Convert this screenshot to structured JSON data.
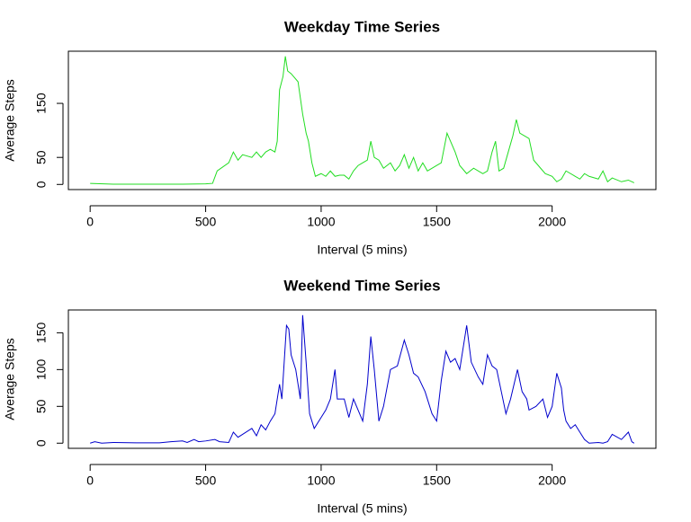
{
  "chart_data": [
    {
      "type": "line",
      "title": "Weekday Time Series",
      "xlabel": "Interval (5 mins)",
      "ylabel": "Average Steps",
      "color": "#22dd22",
      "xlim": [
        -94.2,
        2449.2
      ],
      "xticks": [
        0,
        500,
        1000,
        1500,
        2000
      ],
      "ylim": [
        -9.5,
        246.5
      ],
      "yticks": [
        0,
        50,
        150
      ],
      "x": [
        0,
        100,
        200,
        300,
        400,
        500,
        530,
        550,
        600,
        620,
        640,
        660,
        700,
        720,
        740,
        760,
        780,
        800,
        810,
        820,
        835,
        845,
        855,
        870,
        900,
        920,
        935,
        945,
        960,
        975,
        1000,
        1020,
        1040,
        1060,
        1080,
        1100,
        1120,
        1140,
        1160,
        1180,
        1200,
        1215,
        1230,
        1250,
        1270,
        1300,
        1320,
        1340,
        1360,
        1380,
        1400,
        1420,
        1440,
        1460,
        1500,
        1520,
        1545,
        1560,
        1580,
        1600,
        1630,
        1660,
        1700,
        1720,
        1740,
        1755,
        1770,
        1790,
        1810,
        1830,
        1845,
        1860,
        1900,
        1920,
        1950,
        1970,
        2000,
        2020,
        2040,
        2060,
        2100,
        2120,
        2140,
        2160,
        2200,
        2220,
        2240,
        2260,
        2300,
        2330,
        2355
      ],
      "values": [
        2,
        0.5,
        0.5,
        0.5,
        0.5,
        1,
        2,
        25,
        40,
        60,
        45,
        55,
        50,
        60,
        50,
        60,
        65,
        60,
        80,
        175,
        200,
        237,
        210,
        205,
        190,
        130,
        95,
        80,
        40,
        15,
        20,
        15,
        25,
        15,
        17,
        17,
        10,
        25,
        35,
        40,
        45,
        80,
        50,
        45,
        30,
        40,
        25,
        35,
        55,
        30,
        50,
        25,
        40,
        25,
        35,
        40,
        95,
        80,
        60,
        35,
        20,
        30,
        20,
        25,
        60,
        80,
        25,
        30,
        60,
        90,
        120,
        95,
        85,
        45,
        30,
        20,
        15,
        5,
        10,
        25,
        15,
        10,
        20,
        15,
        10,
        25,
        5,
        12,
        5,
        8,
        3
      ]
    },
    {
      "type": "line",
      "title": "Weekend Time Series",
      "xlabel": "Interval (5 mins)",
      "ylabel": "Average Steps",
      "color": "#0000cc",
      "xlim": [
        -94.2,
        2449.2
      ],
      "xticks": [
        0,
        500,
        1000,
        1500,
        2000
      ],
      "ylim": [
        -7,
        181
      ],
      "yticks": [
        0,
        50,
        100,
        150
      ],
      "x": [
        0,
        20,
        50,
        100,
        200,
        300,
        350,
        400,
        420,
        450,
        470,
        500,
        540,
        560,
        600,
        620,
        640,
        660,
        700,
        720,
        740,
        760,
        780,
        800,
        820,
        830,
        850,
        860,
        870,
        890,
        900,
        910,
        920,
        935,
        950,
        970,
        1000,
        1020,
        1040,
        1060,
        1070,
        1100,
        1120,
        1140,
        1160,
        1180,
        1200,
        1215,
        1230,
        1250,
        1270,
        1300,
        1330,
        1360,
        1380,
        1400,
        1420,
        1450,
        1480,
        1500,
        1520,
        1540,
        1560,
        1580,
        1600,
        1630,
        1650,
        1680,
        1700,
        1720,
        1740,
        1760,
        1780,
        1800,
        1820,
        1850,
        1870,
        1890,
        1900,
        1930,
        1960,
        1980,
        2000,
        2020,
        2040,
        2050,
        2060,
        2080,
        2100,
        2120,
        2140,
        2160,
        2200,
        2220,
        2240,
        2260,
        2300,
        2330,
        2345,
        2355
      ],
      "values": [
        0,
        2,
        0,
        1,
        0.5,
        0.5,
        2,
        3,
        1,
        5,
        2,
        3,
        5,
        2,
        1,
        15,
        8,
        12,
        20,
        10,
        25,
        18,
        30,
        40,
        80,
        60,
        160,
        155,
        120,
        100,
        80,
        60,
        174,
        110,
        40,
        20,
        35,
        45,
        60,
        100,
        60,
        60,
        35,
        60,
        45,
        30,
        80,
        145,
        100,
        30,
        50,
        100,
        105,
        140,
        120,
        95,
        90,
        70,
        40,
        30,
        85,
        125,
        110,
        115,
        100,
        160,
        110,
        90,
        80,
        120,
        105,
        100,
        70,
        40,
        60,
        100,
        70,
        60,
        45,
        50,
        60,
        35,
        50,
        95,
        75,
        45,
        30,
        20,
        25,
        15,
        5,
        0,
        1,
        0,
        2,
        12,
        5,
        15,
        2,
        0
      ]
    }
  ]
}
